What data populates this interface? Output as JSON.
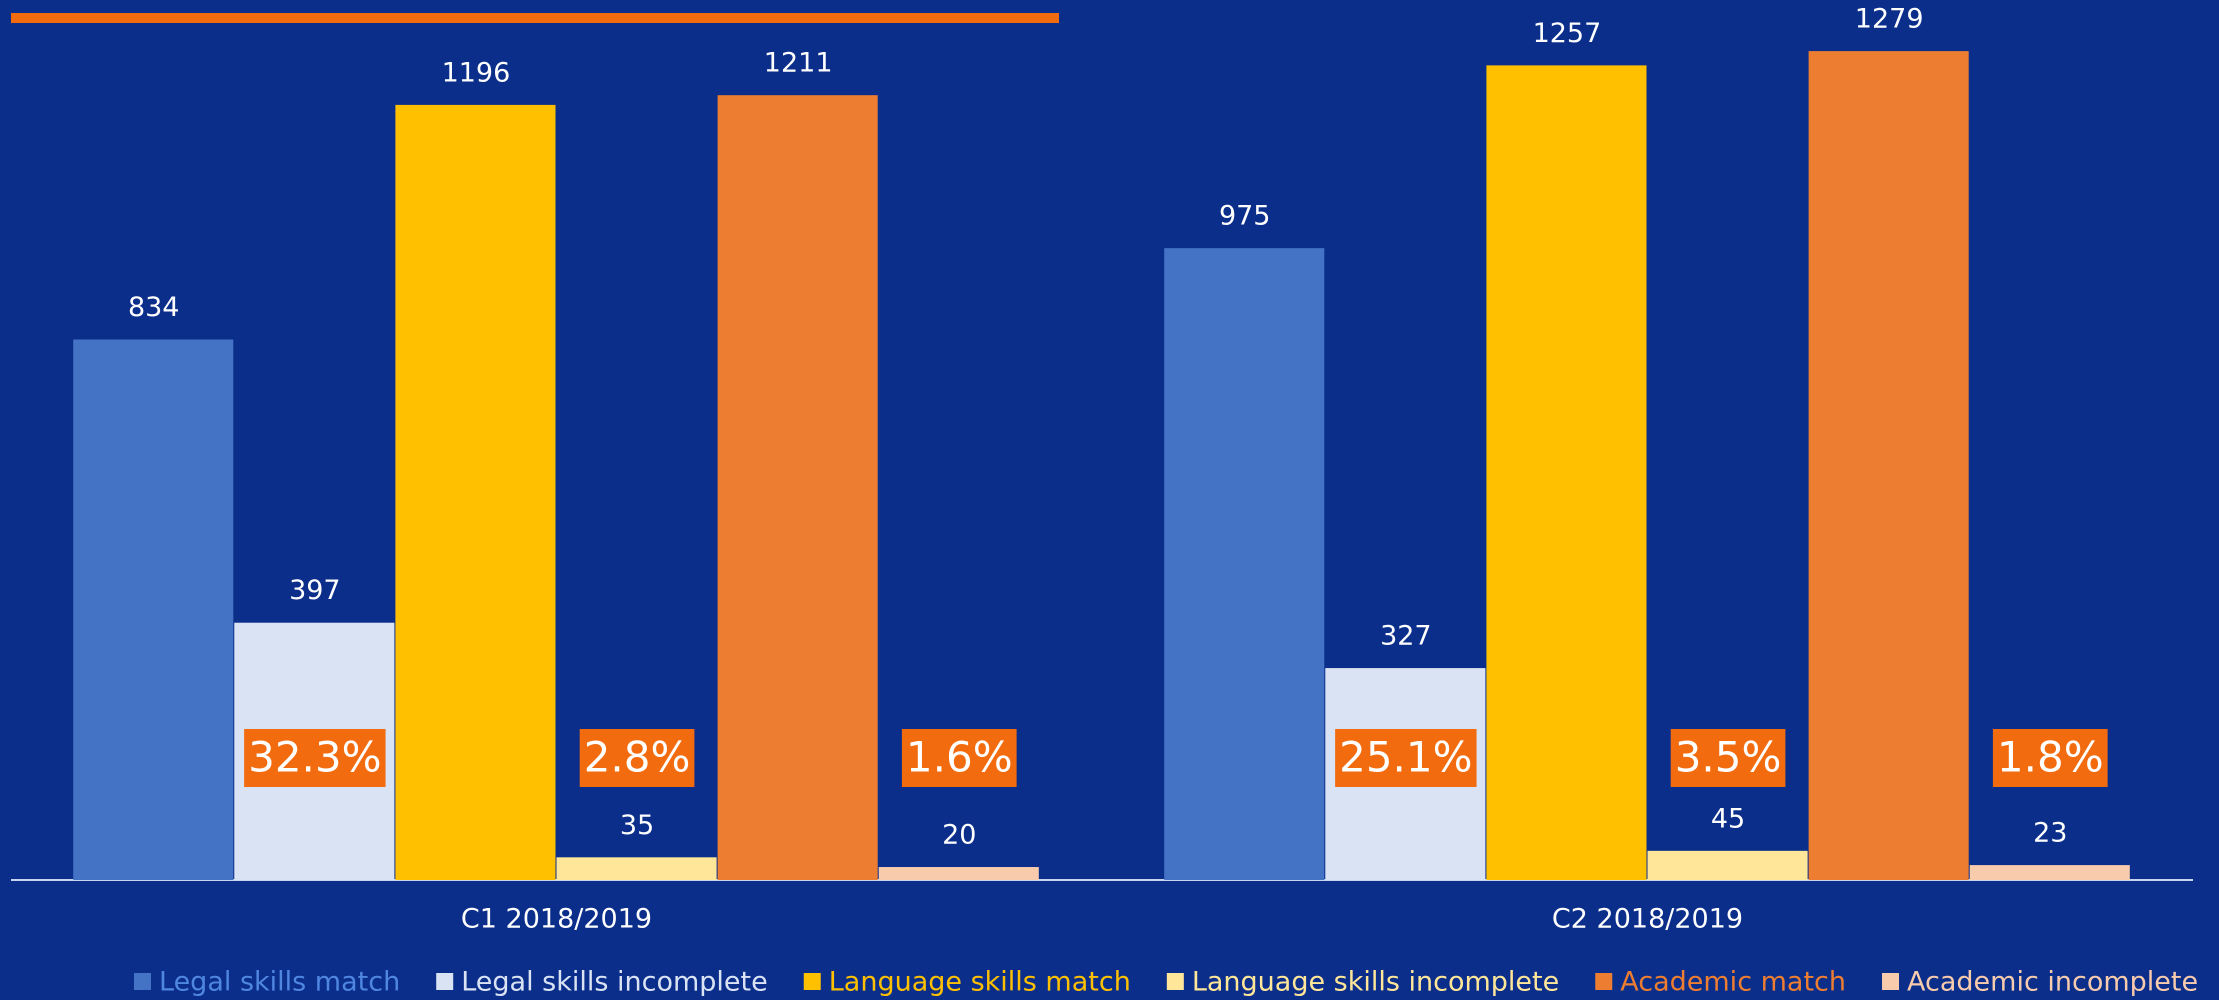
{
  "chart_data": {
    "type": "bar",
    "categories": [
      "C1 2018/2019",
      "C2 2018/2019"
    ],
    "series": [
      {
        "name": "Legal skills match",
        "color": "#4472c4",
        "values": [
          834,
          975
        ]
      },
      {
        "name": "Legal skills incomplete",
        "color": "#dae3f3",
        "values": [
          397,
          327
        ]
      },
      {
        "name": "Language skills match",
        "color": "#ffc000",
        "values": [
          1196,
          1257
        ]
      },
      {
        "name": "Language skills incomplete",
        "color": "#ffe699",
        "values": [
          35,
          45
        ]
      },
      {
        "name": "Academic match",
        "color": "#ed7d31",
        "values": [
          1211,
          1279
        ]
      },
      {
        "name": "Academic incomplete",
        "color": "#f8cbad",
        "values": [
          20,
          23
        ]
      }
    ],
    "annotations": [
      [
        "32.3%",
        "2.8%",
        "1.6%"
      ],
      [
        "25.1%",
        "3.5%",
        "1.8%"
      ]
    ],
    "ylim": [
      0,
      1300
    ],
    "legend": "bottom"
  }
}
